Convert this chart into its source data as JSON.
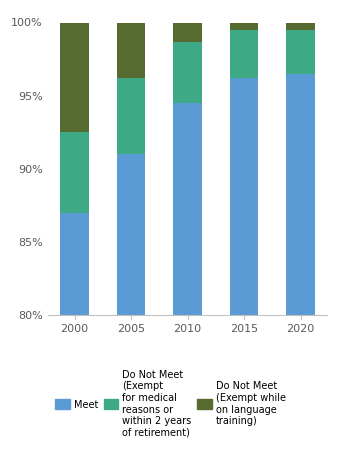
{
  "years": [
    "2000",
    "2005",
    "2010",
    "2015",
    "2020"
  ],
  "meet": [
    87.0,
    91.0,
    94.5,
    96.2,
    96.5
  ],
  "do_not_meet_medical": [
    5.5,
    5.2,
    4.2,
    3.3,
    3.0
  ],
  "do_not_meet_language": [
    7.5,
    3.8,
    1.3,
    0.5,
    0.5
  ],
  "colors": {
    "meet": "#5B9BD5",
    "do_not_meet_medical": "#3DAA85",
    "do_not_meet_language": "#556B2F"
  },
  "ylim": [
    80,
    100
  ],
  "yticks": [
    80,
    85,
    90,
    95,
    100
  ],
  "ytick_labels": [
    "80%",
    "85%",
    "90%",
    "95%",
    "100%"
  ],
  "legend": {
    "meet": "Meet",
    "do_not_meet_medical": "Do Not Meet\n(Exempt\nfor medical\nreasons or\nwithin 2 years\nof retirement)",
    "do_not_meet_language": "Do Not Meet\n(Exempt while\non language\ntraining)"
  },
  "bar_width": 0.5
}
